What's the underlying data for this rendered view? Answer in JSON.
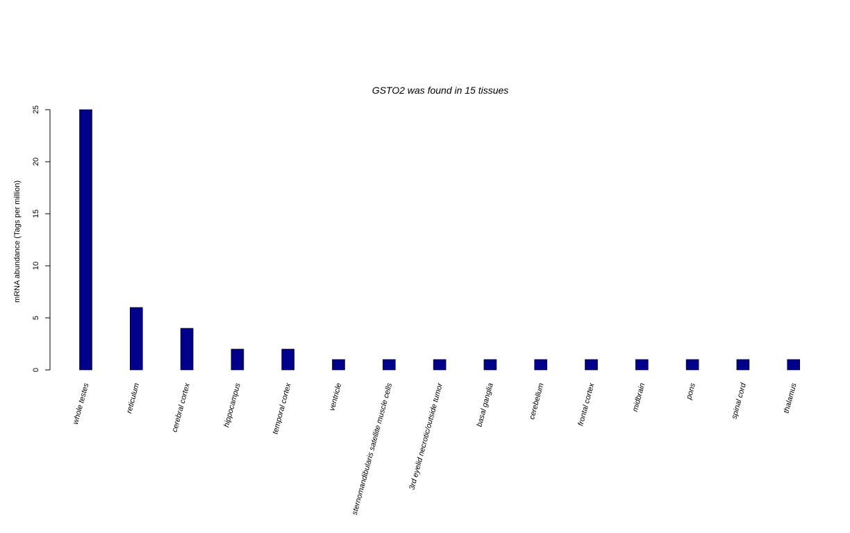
{
  "chart_data": {
    "type": "bar",
    "title": "GSTO2  was found in  15  tissues",
    "xlabel": "",
    "ylabel": "mRNA abundance (Tags per million)",
    "categories": [
      "whole testes",
      "reticulum",
      "cerebral cortex",
      "hippocampus",
      "temporal cortex",
      "ventricle",
      "sternomandibularis satellite muscle cells",
      "3rd eyelid necrotic/outside tumor",
      "basal ganglia",
      "cerebellum",
      "frontal cortex",
      "midbrain",
      "pons",
      "spinal cord",
      "thalamus"
    ],
    "values": [
      25,
      6,
      4,
      2,
      2,
      1,
      1,
      1,
      1,
      1,
      1,
      1,
      1,
      1,
      1
    ],
    "ylim": [
      0,
      25
    ],
    "yticks": [
      "0",
      "5",
      "10",
      "15",
      "20",
      "25"
    ],
    "bar_color": "#00008B",
    "grid": false,
    "legend": "none"
  }
}
